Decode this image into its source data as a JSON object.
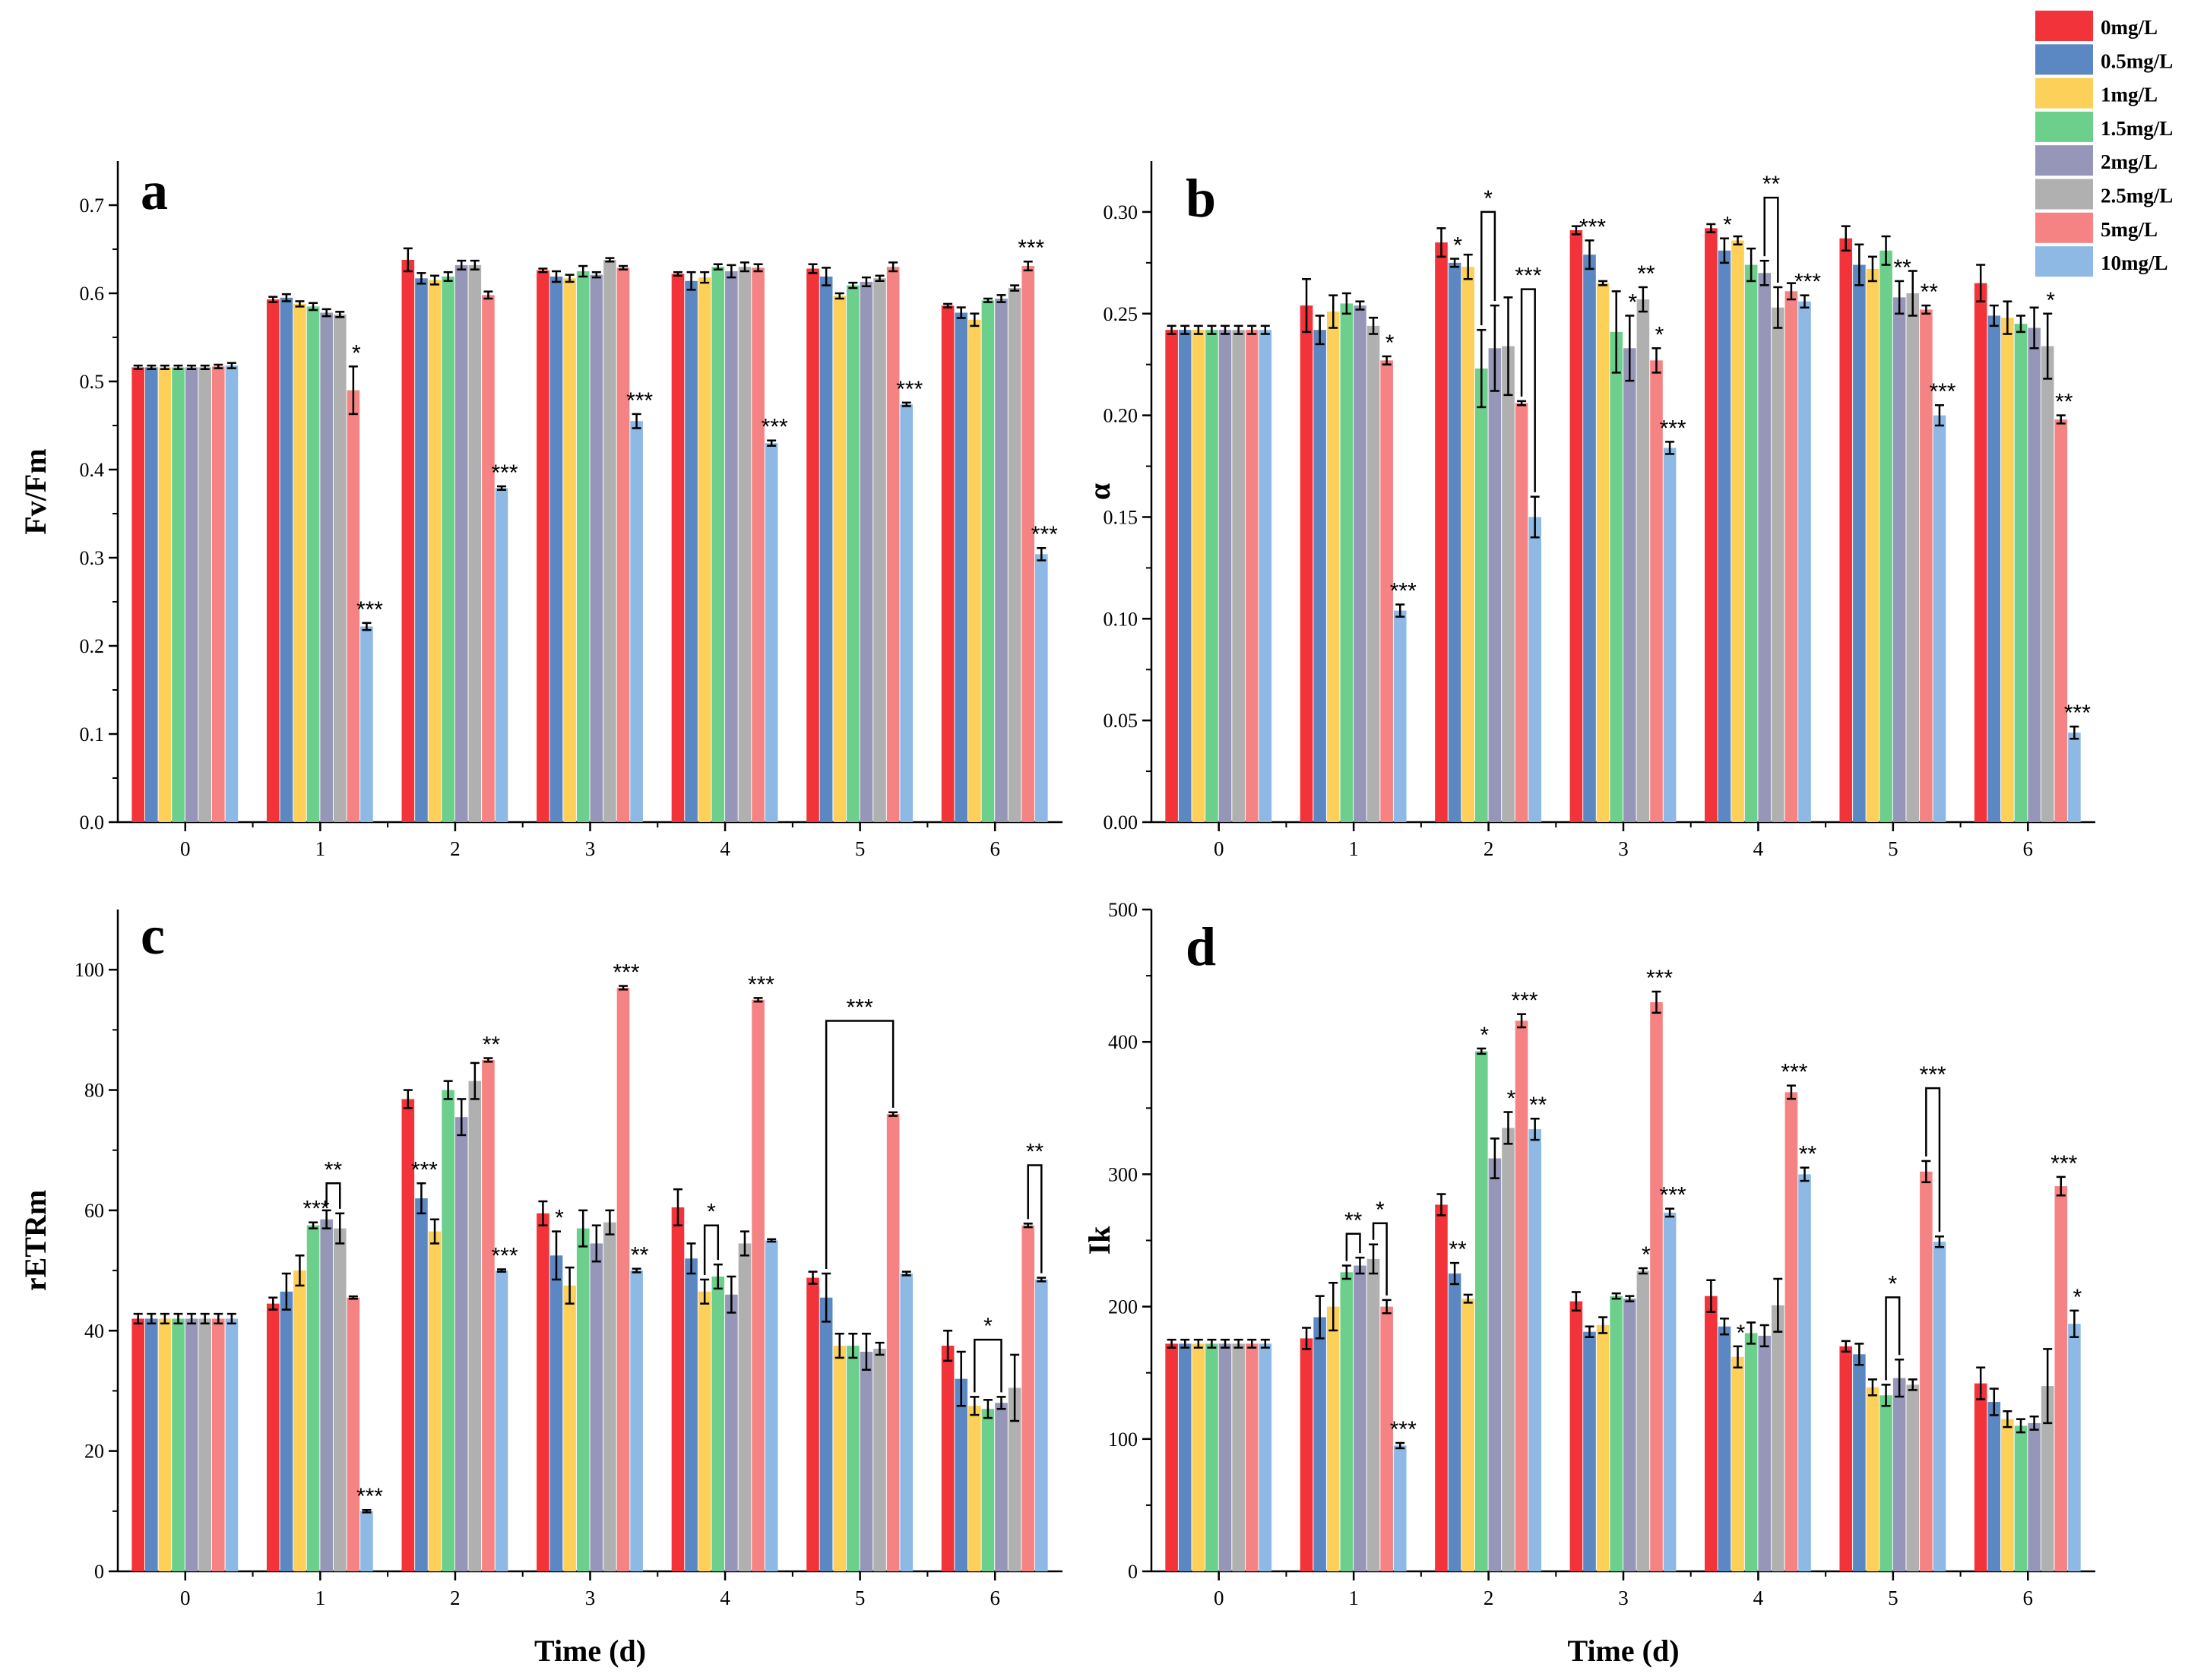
{
  "chart_data": [
    {
      "type": "bar",
      "panel": "a",
      "ylabel": "Fv/Fm",
      "xlabel": "",
      "categories": [
        "0",
        "1",
        "2",
        "3",
        "4",
        "5",
        "6"
      ],
      "ylim": [
        0,
        0.75
      ],
      "yticks": [
        "0.0",
        "0.1",
        "0.2",
        "0.3",
        "0.4",
        "0.5",
        "0.6",
        "0.7"
      ],
      "series": [
        {
          "name": "0mg/L",
          "values": [
            0.516,
            0.593,
            0.638,
            0.626,
            0.622,
            0.628,
            0.586
          ]
        },
        {
          "name": "0.5mg/L",
          "values": [
            0.516,
            0.595,
            0.617,
            0.619,
            0.614,
            0.619,
            0.578
          ]
        },
        {
          "name": "1mg/L",
          "values": [
            0.516,
            0.588,
            0.615,
            0.617,
            0.618,
            0.597,
            0.57
          ]
        },
        {
          "name": "1.5mg/L",
          "values": [
            0.516,
            0.585,
            0.619,
            0.625,
            0.63,
            0.609,
            0.592
          ]
        },
        {
          "name": "2mg/L",
          "values": [
            0.516,
            0.578,
            0.632,
            0.621,
            0.625,
            0.613,
            0.594
          ]
        },
        {
          "name": "2.5mg/L",
          "values": [
            0.516,
            0.576,
            0.632,
            0.638,
            0.63,
            0.617,
            0.606
          ]
        },
        {
          "name": "5mg/L",
          "values": [
            0.517,
            0.49,
            0.598,
            0.629,
            0.629,
            0.63,
            0.631
          ]
        },
        {
          "name": "10mg/L",
          "values": [
            0.518,
            0.222,
            0.379,
            0.455,
            0.43,
            0.474,
            0.304
          ]
        }
      ],
      "errors": [
        [
          0.002,
          0.003,
          0.013,
          0.002,
          0.002,
          0.005,
          0.002
        ],
        [
          0.002,
          0.004,
          0.006,
          0.006,
          0.01,
          0.01,
          0.006
        ],
        [
          0.002,
          0.003,
          0.005,
          0.004,
          0.006,
          0.003,
          0.007
        ],
        [
          0.002,
          0.004,
          0.005,
          0.006,
          0.003,
          0.003,
          0.002
        ],
        [
          0.002,
          0.004,
          0.005,
          0.003,
          0.007,
          0.005,
          0.004
        ],
        [
          0.002,
          0.003,
          0.005,
          0.002,
          0.005,
          0.003,
          0.003
        ],
        [
          0.002,
          0.027,
          0.004,
          0.002,
          0.004,
          0.005,
          0.005
        ],
        [
          0.003,
          0.004,
          0.002,
          0.008,
          0.003,
          0.002,
          0.007
        ]
      ],
      "annotations": [
        {
          "cat": 1,
          "series": 6,
          "text": "*"
        },
        {
          "cat": 1,
          "series": 7,
          "text": "***"
        },
        {
          "cat": 2,
          "series": 7,
          "text": "***"
        },
        {
          "cat": 3,
          "series": 7,
          "text": "***"
        },
        {
          "cat": 4,
          "series": 7,
          "text": "***"
        },
        {
          "cat": 5,
          "series": 7,
          "text": "***"
        },
        {
          "cat": 6,
          "series": 6,
          "text": "***"
        },
        {
          "cat": 6,
          "series": 7,
          "text": "***"
        }
      ],
      "brackets": []
    },
    {
      "type": "bar",
      "panel": "b",
      "ylabel": "α",
      "xlabel": "",
      "categories": [
        "0",
        "1",
        "2",
        "3",
        "4",
        "5",
        "6"
      ],
      "ylim": [
        0,
        0.325
      ],
      "yticks": [
        "0.00",
        "0.05",
        "0.10",
        "0.15",
        "0.20",
        "0.25",
        "0.30"
      ],
      "series": [
        {
          "name": "0mg/L",
          "values": [
            0.242,
            0.254,
            0.285,
            0.291,
            0.292,
            0.287,
            0.265
          ]
        },
        {
          "name": "0.5mg/L",
          "values": [
            0.242,
            0.242,
            0.275,
            0.279,
            0.281,
            0.274,
            0.249
          ]
        },
        {
          "name": "1mg/L",
          "values": [
            0.242,
            0.251,
            0.273,
            0.265,
            0.286,
            0.272,
            0.248
          ]
        },
        {
          "name": "1.5mg/L",
          "values": [
            0.242,
            0.255,
            0.223,
            0.241,
            0.274,
            0.281,
            0.245
          ]
        },
        {
          "name": "2mg/L",
          "values": [
            0.242,
            0.254,
            0.233,
            0.233,
            0.27,
            0.258,
            0.243
          ]
        },
        {
          "name": "2.5mg/L",
          "values": [
            0.242,
            0.244,
            0.234,
            0.257,
            0.253,
            0.26,
            0.234
          ]
        },
        {
          "name": "5mg/L",
          "values": [
            0.242,
            0.227,
            0.206,
            0.227,
            0.261,
            0.252,
            0.198
          ]
        },
        {
          "name": "10mg/L",
          "values": [
            0.242,
            0.104,
            0.15,
            0.184,
            0.256,
            0.2,
            0.044
          ]
        }
      ],
      "errors": [
        [
          0.002,
          0.013,
          0.007,
          0.002,
          0.002,
          0.006,
          0.009
        ],
        [
          0.002,
          0.007,
          0.002,
          0.007,
          0.006,
          0.01,
          0.005
        ],
        [
          0.002,
          0.008,
          0.006,
          0.001,
          0.002,
          0.006,
          0.008
        ],
        [
          0.002,
          0.005,
          0.019,
          0.02,
          0.008,
          0.007,
          0.004
        ],
        [
          0.002,
          0.002,
          0.021,
          0.016,
          0.006,
          0.008,
          0.01
        ],
        [
          0.002,
          0.004,
          0.024,
          0.006,
          0.01,
          0.011,
          0.016
        ],
        [
          0.002,
          0.002,
          0.001,
          0.006,
          0.004,
          0.002,
          0.002
        ],
        [
          0.002,
          0.003,
          0.01,
          0.003,
          0.003,
          0.005,
          0.003
        ]
      ],
      "annotations": [
        {
          "cat": 1,
          "series": 6,
          "text": "*"
        },
        {
          "cat": 1,
          "series": 7,
          "text": "***"
        },
        {
          "cat": 2,
          "series": 1,
          "text": "*"
        },
        {
          "cat": 3,
          "series": 1,
          "text": "***"
        },
        {
          "cat": 3,
          "series": 4,
          "text": "*"
        },
        {
          "cat": 3,
          "series": 5,
          "text": "**"
        },
        {
          "cat": 3,
          "series": 6,
          "text": "*"
        },
        {
          "cat": 3,
          "series": 7,
          "text": "***"
        },
        {
          "cat": 4,
          "series": 1,
          "text": "*"
        },
        {
          "cat": 4,
          "series": 7,
          "text": "***"
        },
        {
          "cat": 5,
          "series": 4,
          "text": "**"
        },
        {
          "cat": 5,
          "series": 6,
          "text": "**"
        },
        {
          "cat": 5,
          "series": 7,
          "text": "***"
        },
        {
          "cat": 6,
          "series": 5,
          "text": "*"
        },
        {
          "cat": 6,
          "series": 6,
          "text": "**"
        },
        {
          "cat": 6,
          "series": 7,
          "text": "***"
        }
      ],
      "brackets": [
        {
          "cat": 2,
          "from": 3,
          "to": 4,
          "yb": 0.3,
          "text": "*"
        },
        {
          "cat": 2,
          "from": 6,
          "to": 7,
          "yb": 0.262,
          "text": "***"
        },
        {
          "cat": 4,
          "from": 4,
          "to": 5,
          "yb": 0.307,
          "text": "**"
        }
      ]
    },
    {
      "type": "bar",
      "panel": "c",
      "ylabel": "rETRm",
      "xlabel": "Time (d)",
      "categories": [
        "0",
        "1",
        "2",
        "3",
        "4",
        "5",
        "6"
      ],
      "ylim": [
        0,
        110
      ],
      "yticks": [
        "0",
        "20",
        "40",
        "60",
        "80",
        "100"
      ],
      "series": [
        {
          "name": "0mg/L",
          "values": [
            42,
            44.5,
            78.5,
            59.5,
            60.5,
            48.8,
            37.5
          ]
        },
        {
          "name": "0.5mg/L",
          "values": [
            42,
            46.5,
            62,
            52.5,
            52,
            45.5,
            32
          ]
        },
        {
          "name": "1mg/L",
          "values": [
            42,
            50,
            56.5,
            47.5,
            46.5,
            37.5,
            27.5
          ]
        },
        {
          "name": "1.5mg/L",
          "values": [
            42,
            57.5,
            80,
            57,
            49,
            37.5,
            27
          ]
        },
        {
          "name": "2mg/L",
          "values": [
            42,
            58.5,
            75.5,
            54.5,
            46,
            36.5,
            28
          ]
        },
        {
          "name": "2.5mg/L",
          "values": [
            42,
            57,
            81.5,
            58,
            54.5,
            37,
            30.5
          ]
        },
        {
          "name": "5mg/L",
          "values": [
            42,
            45.5,
            85,
            97,
            95,
            76,
            57.5
          ]
        },
        {
          "name": "10mg/L",
          "values": [
            42,
            10,
            50,
            50,
            55,
            49.5,
            48.5
          ]
        }
      ],
      "errors": [
        [
          0.8,
          1,
          1.5,
          2,
          3,
          1,
          2.5
        ],
        [
          0.8,
          3,
          2.5,
          4,
          2.5,
          4,
          4.5
        ],
        [
          0.8,
          2.5,
          2,
          3,
          2,
          2,
          1.5
        ],
        [
          0.8,
          0.5,
          1.5,
          3,
          2,
          2,
          1.5
        ],
        [
          0.8,
          1.5,
          3,
          3,
          3,
          3,
          1
        ],
        [
          0.8,
          2.5,
          3,
          2,
          2,
          1,
          5.5
        ],
        [
          0.8,
          0.2,
          0.3,
          0.3,
          0.3,
          0.3,
          0.3
        ],
        [
          0.8,
          0.2,
          0.2,
          0.3,
          0.2,
          0.3,
          0.3
        ]
      ],
      "annotations": [
        {
          "cat": 1,
          "series": 3,
          "text": "***"
        },
        {
          "cat": 1,
          "series": 7,
          "text": "***"
        },
        {
          "cat": 2,
          "series": 1,
          "text": "***"
        },
        {
          "cat": 2,
          "series": 6,
          "text": "**"
        },
        {
          "cat": 2,
          "series": 7,
          "text": "***"
        },
        {
          "cat": 3,
          "series": 1,
          "text": "*"
        },
        {
          "cat": 3,
          "series": 6,
          "text": "***"
        },
        {
          "cat": 3,
          "series": 7,
          "text": "**"
        },
        {
          "cat": 4,
          "series": 6,
          "text": "***"
        }
      ],
      "brackets": [
        {
          "cat": 1,
          "from": 4,
          "to": 5,
          "yb": 64.5,
          "text": "**"
        },
        {
          "cat": 4,
          "from": 2,
          "to": 3,
          "yb": 57.5,
          "text": "*"
        },
        {
          "cat": 5,
          "from": 1,
          "to": 6,
          "yb": 91.5,
          "text": "***"
        },
        {
          "cat": 6,
          "from": 2,
          "to": 4,
          "yb": 38.5,
          "text": "*"
        },
        {
          "cat": 6,
          "from": 6,
          "to": 7,
          "yb": 67.5,
          "text": "**"
        }
      ]
    },
    {
      "type": "bar",
      "panel": "d",
      "ylabel": "Ik",
      "xlabel": "Time (d)",
      "categories": [
        "0",
        "1",
        "2",
        "3",
        "4",
        "5",
        "6"
      ],
      "ylim": [
        0,
        500
      ],
      "yticks": [
        "0",
        "100",
        "200",
        "300",
        "400",
        "500"
      ],
      "series": [
        {
          "name": "0mg/L",
          "values": [
            172,
            176,
            277,
            204,
            208,
            170,
            142
          ]
        },
        {
          "name": "0.5mg/L",
          "values": [
            172,
            192,
            225,
            181,
            185,
            164,
            128
          ]
        },
        {
          "name": "1mg/L",
          "values": [
            172,
            200,
            206,
            186,
            162,
            139,
            115
          ]
        },
        {
          "name": "1.5mg/L",
          "values": [
            172,
            226,
            393,
            208,
            180,
            133,
            110
          ]
        },
        {
          "name": "2mg/L",
          "values": [
            172,
            231,
            312,
            206,
            178,
            146,
            112
          ]
        },
        {
          "name": "2.5mg/L",
          "values": [
            172,
            236,
            335,
            227,
            201,
            141,
            140
          ]
        },
        {
          "name": "5mg/L",
          "values": [
            172,
            200,
            416,
            430,
            362,
            302,
            291
          ]
        },
        {
          "name": "10mg/L",
          "values": [
            172,
            95,
            334,
            271,
            300,
            249,
            187
          ]
        }
      ],
      "errors": [
        [
          3,
          8,
          8,
          7,
          12,
          4,
          12
        ],
        [
          3,
          16,
          8,
          4,
          6,
          8,
          10
        ],
        [
          3,
          18,
          3,
          6,
          8,
          6,
          6
        ],
        [
          3,
          5,
          2,
          2,
          8,
          8,
          5
        ],
        [
          3,
          6,
          15,
          2,
          8,
          14,
          5
        ],
        [
          3,
          11,
          12,
          2,
          20,
          4,
          28
        ],
        [
          3,
          5,
          5,
          8,
          5,
          8,
          7
        ],
        [
          3,
          2,
          8,
          3,
          5,
          4,
          10
        ]
      ],
      "annotations": [
        {
          "cat": 2,
          "series": 1,
          "text": "**"
        },
        {
          "cat": 2,
          "series": 3,
          "text": "*"
        },
        {
          "cat": 2,
          "series": 5,
          "text": "*"
        },
        {
          "cat": 2,
          "series": 6,
          "text": "***"
        },
        {
          "cat": 2,
          "series": 7,
          "text": "**"
        },
        {
          "cat": 3,
          "series": 5,
          "text": "*"
        },
        {
          "cat": 3,
          "series": 6,
          "text": "***"
        },
        {
          "cat": 3,
          "series": 7,
          "text": "***"
        },
        {
          "cat": 4,
          "series": 2,
          "text": "*"
        },
        {
          "cat": 4,
          "series": 6,
          "text": "***"
        },
        {
          "cat": 4,
          "series": 7,
          "text": "**"
        },
        {
          "cat": 6,
          "series": 6,
          "text": "***"
        },
        {
          "cat": 6,
          "series": 7,
          "text": "*"
        },
        {
          "cat": 1,
          "series": 7,
          "text": "***"
        }
      ],
      "brackets": [
        {
          "cat": 1,
          "from": 3,
          "to": 4,
          "yb": 255,
          "text": "**"
        },
        {
          "cat": 1,
          "from": 5,
          "to": 6,
          "yb": 263,
          "text": "*"
        },
        {
          "cat": 5,
          "from": 3,
          "to": 4,
          "yb": 207,
          "text": "*"
        },
        {
          "cat": 5,
          "from": 6,
          "to": 7,
          "yb": 365,
          "text": "***"
        }
      ]
    }
  ],
  "legend": {
    "items": [
      {
        "label": "0mg/L",
        "color": "#f2333a"
      },
      {
        "label": "0.5mg/L",
        "color": "#5b87c3"
      },
      {
        "label": "1mg/L",
        "color": "#fdd05a"
      },
      {
        "label": "1.5mg/L",
        "color": "#6ccf8c"
      },
      {
        "label": "2mg/L",
        "color": "#9696b8"
      },
      {
        "label": "2.5mg/L",
        "color": "#b0b0b0"
      },
      {
        "label": "5mg/L",
        "color": "#f58383"
      },
      {
        "label": "10mg/L",
        "color": "#8db9e4"
      }
    ]
  }
}
